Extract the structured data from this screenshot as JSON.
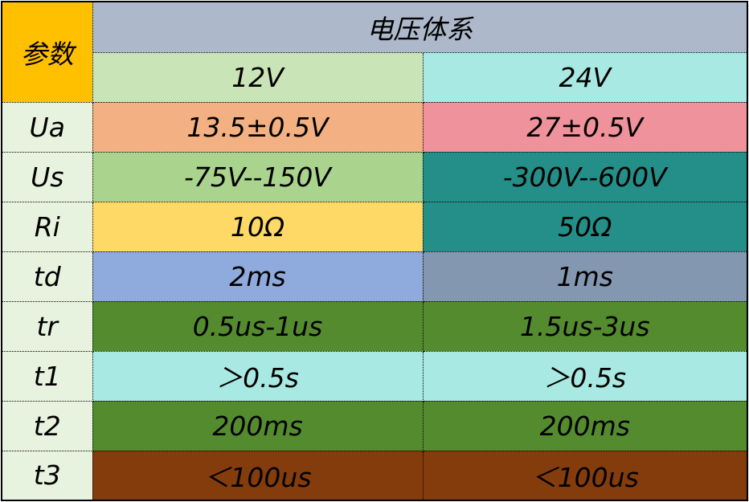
{
  "header": {
    "param_label": "参数",
    "system_label": "电压体系",
    "col_12v": "12V",
    "col_24v": "24V"
  },
  "colors": {
    "param": "#FFC000",
    "system": "#ADB9CA",
    "col_12v": "#C9E4B6",
    "col_24v": "#A9E9E3",
    "label_column": "#E7F3DE"
  },
  "rows": [
    {
      "param": "Ua",
      "v12": "13.5±0.5V",
      "v24": "27±0.5V",
      "c12": "#F3B183",
      "c24": "#F0929C"
    },
    {
      "param": "Us",
      "v12": "-75V--150V",
      "v24": "-300V--600V",
      "c12": "#AAD38E",
      "c24": "#238F88"
    },
    {
      "param": "Ri",
      "v12": "10Ω",
      "v24": "50Ω",
      "c12": "#FFD966",
      "c24": "#238F88"
    },
    {
      "param": "td",
      "v12": "2ms",
      "v24": "1ms",
      "c12": "#8FAADC",
      "c24": "#8497B0"
    },
    {
      "param": "tr",
      "v12": "0.5us-1us",
      "v24": "1.5us-3us",
      "c12": "#548B2F",
      "c24": "#548B2F"
    },
    {
      "param": "t1",
      "v12": "＞0.5s",
      "v24": "＞0.5s",
      "c12": "#A9E9E3",
      "c24": "#A9E9E3"
    },
    {
      "param": "t2",
      "v12": "200ms",
      "v24": "200ms",
      "c12": "#548B2F",
      "c24": "#548B2F"
    },
    {
      "param": "t3",
      "v12": "＜100us",
      "v24": "＜100us",
      "c12": "#843C0C",
      "c24": "#843C0C"
    }
  ]
}
